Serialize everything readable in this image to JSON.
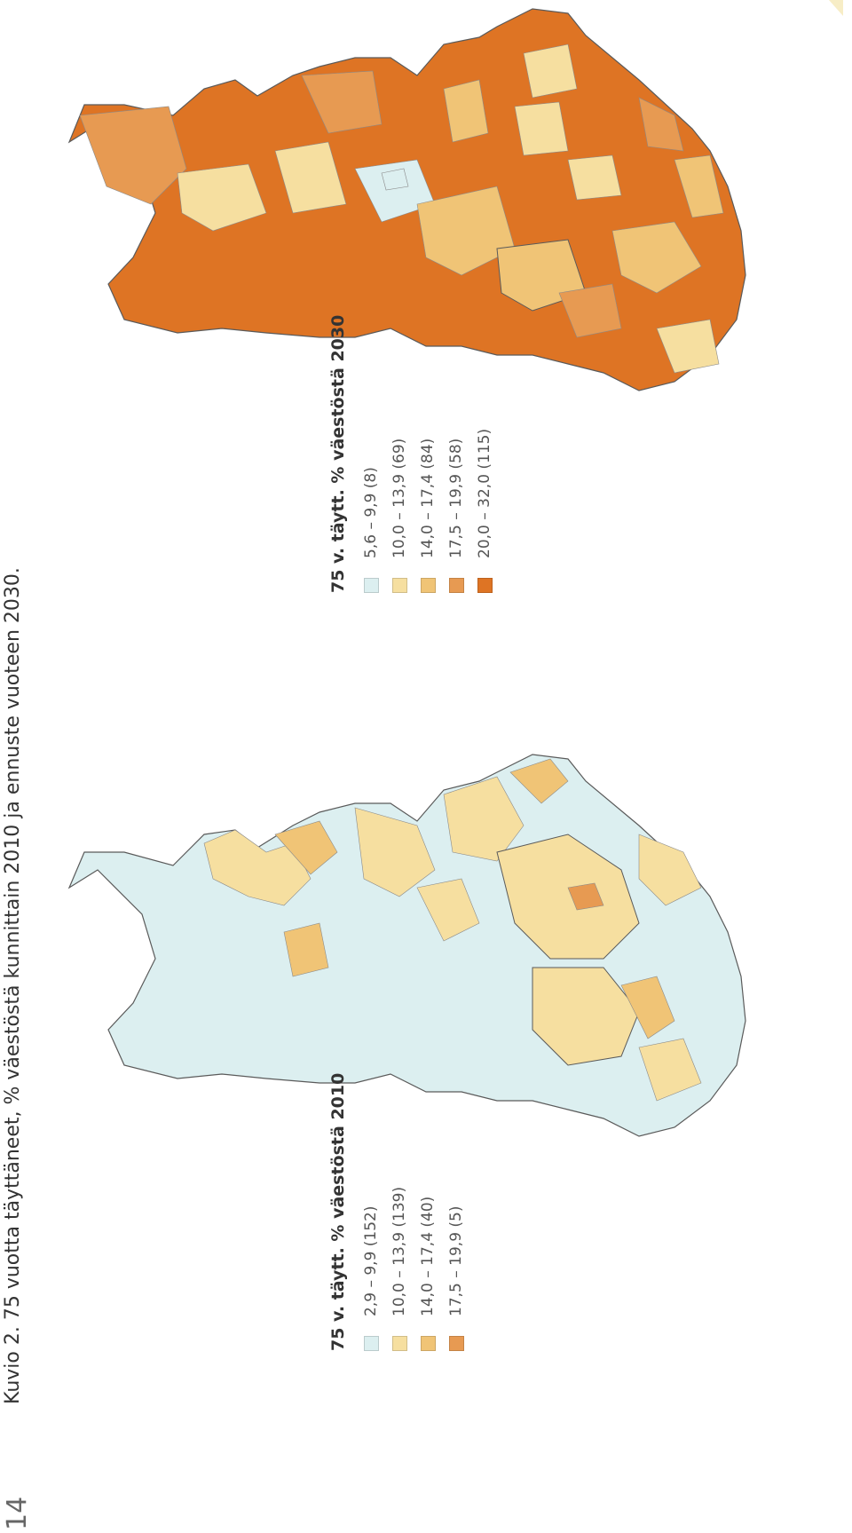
{
  "page_number": "14",
  "caption": "Kuvio 2. 75 vuotta täyttäneet, % väestöstä kunnittain 2010 ja ennuste vuoteen 2030.",
  "colors": {
    "class1": "#dceff0",
    "class2": "#f6dfa0",
    "class3": "#f0c476",
    "class4": "#e79a52",
    "class5": "#de7424",
    "borders": "#5a5a5a",
    "coast": "#9a9a9a"
  },
  "legend_2010": {
    "title": "75 v. täytt. % väestöstä 2010",
    "items": [
      {
        "label": "2,9 –   9,9 (152)",
        "color": "#dceff0"
      },
      {
        "label": "10,0 – 13,9 (139)",
        "color": "#f6dfa0"
      },
      {
        "label": "14,0 – 17,4   (40)",
        "color": "#f0c476"
      },
      {
        "label": "17,5 – 19,9     (5)",
        "color": "#e79a52"
      }
    ]
  },
  "legend_2030": {
    "title": "75 v. täytt. % väestöstä 2030",
    "items": [
      {
        "label": "5,6 –   9,9     (8)",
        "color": "#dceff0"
      },
      {
        "label": "10,0 – 13,9   (69)",
        "color": "#f6dfa0"
      },
      {
        "label": "14,0 – 17,4   (84)",
        "color": "#f0c476"
      },
      {
        "label": "17,5 – 19,9   (58)",
        "color": "#e79a52"
      },
      {
        "label": "20,0 – 32,0 (115)",
        "color": "#de7424"
      }
    ]
  }
}
